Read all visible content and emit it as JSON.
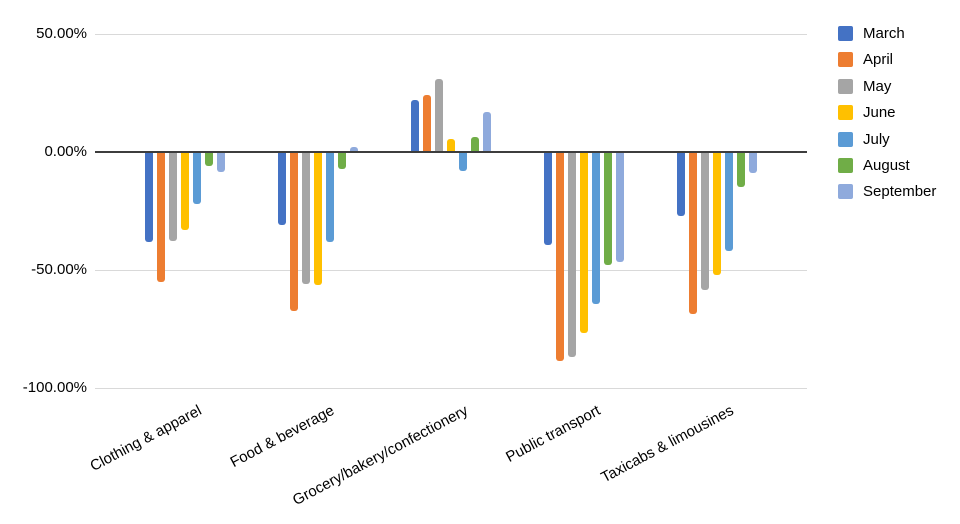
{
  "chart_data": {
    "type": "bar",
    "orientation": "vertical-grouped",
    "title": "",
    "xlabel": "",
    "ylabel": "",
    "ylim": [
      -100,
      50
    ],
    "grid": true,
    "legend_position": "right",
    "categories": [
      "Clothing & apparel",
      "Food & beverage",
      "Grocery/bakery/confectionery",
      "Public transport",
      "Taxicabs & limousines"
    ],
    "yticks": [
      {
        "label": "50.00%",
        "value": 50
      },
      {
        "label": "0.00%",
        "value": 0
      },
      {
        "label": "-50.00%",
        "value": -50
      },
      {
        "label": "-100.00%",
        "value": -100
      }
    ],
    "series": [
      {
        "name": "March",
        "color": "#4472C4",
        "values": [
          -38,
          -31,
          22,
          -39.5,
          -27
        ]
      },
      {
        "name": "April",
        "color": "#ED7D31",
        "values": [
          -55,
          -67.5,
          24,
          -88.5,
          -68.5
        ]
      },
      {
        "name": "May",
        "color": "#A5A5A5",
        "values": [
          -37.5,
          -56,
          31,
          -87,
          -58.5
        ]
      },
      {
        "name": "June",
        "color": "#FFC000",
        "values": [
          -33,
          -56.5,
          5.5,
          -76.5,
          -52
        ]
      },
      {
        "name": "July",
        "color": "#5B9BD5",
        "values": [
          -22,
          -38,
          -8,
          -64.5,
          -42
        ]
      },
      {
        "name": "August",
        "color": "#70AD47",
        "values": [
          -6,
          -7,
          6.5,
          -48,
          -15
        ]
      },
      {
        "name": "September",
        "color": "#8FAADC",
        "values": [
          -8.5,
          2,
          17,
          -46.5,
          -9
        ]
      }
    ]
  },
  "colors": {
    "background": "#ffffff",
    "gridline": "#d9d9d9",
    "zero_line": "#3d3d3d",
    "text": "#000000"
  }
}
